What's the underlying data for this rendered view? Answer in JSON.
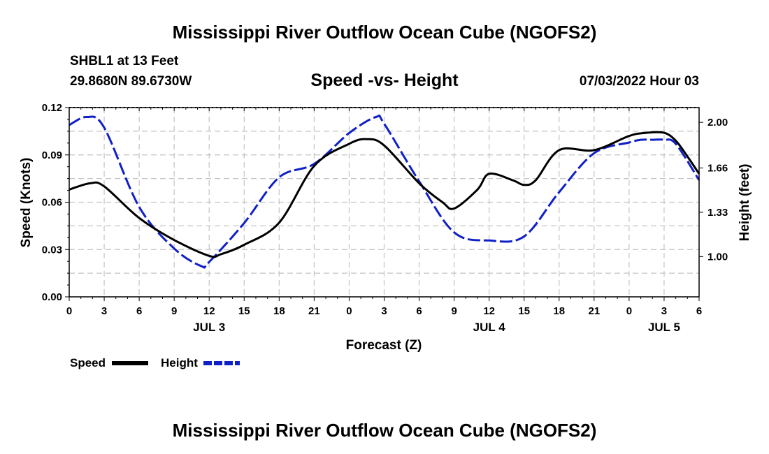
{
  "page": {
    "title_top": "Mississippi River Outflow Ocean Cube (NGOFS2)",
    "title_bottom": "Mississippi River Outflow Ocean Cube (NGOFS2)",
    "station": "SHBL1 at 13 Feet",
    "coords": "29.8680N  89.6730W",
    "plot_title": "Speed -vs- Height",
    "datetime": "07/03/2022 Hour 03"
  },
  "chart_data": {
    "type": "line",
    "title": "Speed -vs- Height",
    "xlabel": "Forecast (Z)",
    "ylabel_left": "Speed (Knots)",
    "ylabel_right": "Height (feet)",
    "x_range_hours": [
      0,
      54
    ],
    "x_ticks": [
      {
        "h": 0,
        "label": "0"
      },
      {
        "h": 3,
        "label": "3"
      },
      {
        "h": 6,
        "label": "6"
      },
      {
        "h": 9,
        "label": "9"
      },
      {
        "h": 12,
        "label": "12"
      },
      {
        "h": 15,
        "label": "15"
      },
      {
        "h": 18,
        "label": "18"
      },
      {
        "h": 21,
        "label": "21"
      },
      {
        "h": 24,
        "label": "0"
      },
      {
        "h": 27,
        "label": "3"
      },
      {
        "h": 30,
        "label": "6"
      },
      {
        "h": 33,
        "label": "9"
      },
      {
        "h": 36,
        "label": "12"
      },
      {
        "h": 39,
        "label": "15"
      },
      {
        "h": 42,
        "label": "18"
      },
      {
        "h": 45,
        "label": "21"
      },
      {
        "h": 48,
        "label": "0"
      },
      {
        "h": 51,
        "label": "3"
      },
      {
        "h": 54,
        "label": "6"
      }
    ],
    "date_labels": [
      {
        "h": 12,
        "label": "JUL 3"
      },
      {
        "h": 36,
        "label": "JUL 4"
      },
      {
        "h": 51,
        "label": "JUL 5"
      }
    ],
    "y_left": {
      "min": 0,
      "max": 0.12,
      "ticks": [
        0.0,
        0.03,
        0.06,
        0.09,
        0.12
      ],
      "labels": [
        "0.00",
        "0.03",
        "0.06",
        "0.09",
        "0.12"
      ]
    },
    "y_right": {
      "min": 0.7,
      "max": 2.11,
      "ticks": [
        1.0,
        1.33,
        1.66,
        2.0
      ],
      "labels": [
        "1.00",
        "1.33",
        "1.66",
        "2.00"
      ]
    },
    "series": [
      {
        "name": "Speed",
        "axis": "left",
        "color": "#000000",
        "dash": "solid",
        "x": [
          0,
          1.8,
          3,
          6,
          9,
          12,
          13,
          15,
          18,
          21,
          24,
          25.5,
          27,
          30,
          32,
          33,
          35,
          36,
          38,
          39,
          40,
          42,
          45,
          48,
          49.5,
          51,
          52,
          53,
          54
        ],
        "y": [
          0.068,
          0.072,
          0.07,
          0.05,
          0.036,
          0.026,
          0.027,
          0.033,
          0.047,
          0.083,
          0.097,
          0.1,
          0.096,
          0.072,
          0.06,
          0.056,
          0.068,
          0.078,
          0.074,
          0.071,
          0.074,
          0.093,
          0.093,
          0.102,
          0.104,
          0.104,
          0.099,
          0.089,
          0.078
        ]
      },
      {
        "name": "Height",
        "axis": "right",
        "color": "#1020c8",
        "dash": "dashed",
        "x": [
          0,
          1.5,
          3,
          6,
          9,
          11.3,
          12,
          15,
          18,
          21,
          24,
          26.3,
          27,
          30,
          33,
          36,
          39,
          42,
          45,
          48,
          49,
          50,
          51,
          52,
          54
        ],
        "y": [
          1.98,
          2.04,
          1.96,
          1.37,
          1.06,
          0.93,
          0.96,
          1.25,
          1.59,
          1.69,
          1.92,
          2.04,
          1.99,
          1.56,
          1.18,
          1.12,
          1.15,
          1.48,
          1.77,
          1.85,
          1.87,
          1.87,
          1.87,
          1.84,
          1.57
        ]
      }
    ],
    "legend": [
      {
        "label": "Speed",
        "color": "#000000",
        "dash": "solid"
      },
      {
        "label": "Height",
        "color": "#1020c8",
        "dash": "dashed"
      }
    ],
    "legend_position": "bottom-left",
    "grid": true
  }
}
